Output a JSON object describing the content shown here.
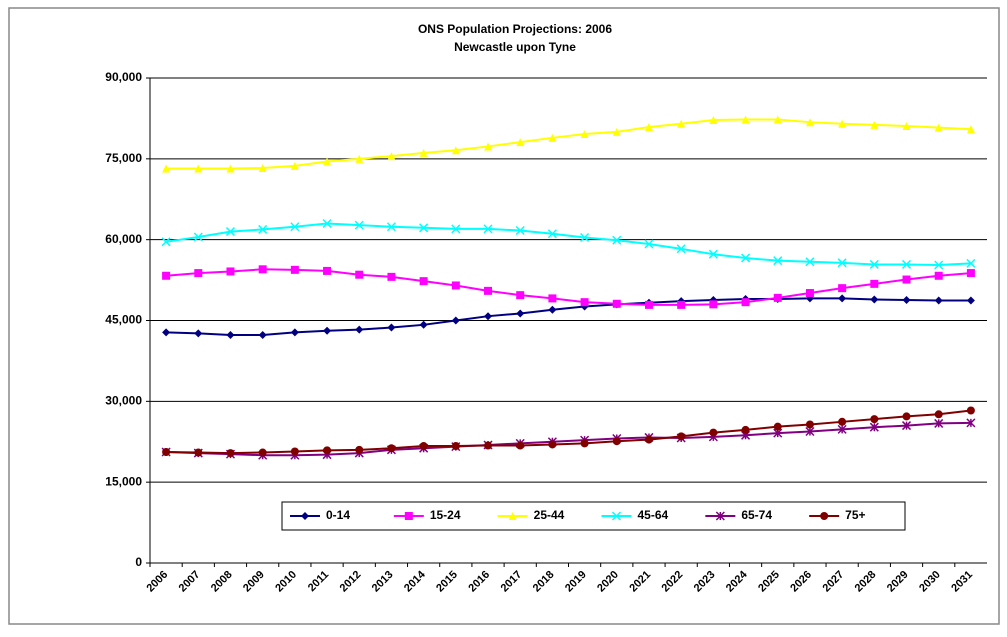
{
  "chart_data": {
    "type": "line",
    "title": "ONS Population Projections: 2006",
    "subtitle": "Newcastle upon Tyne",
    "categories": [
      "2006",
      "2007",
      "2008",
      "2009",
      "2010",
      "2011",
      "2012",
      "2013",
      "2014",
      "2015",
      "2016",
      "2017",
      "2018",
      "2019",
      "2020",
      "2021",
      "2022",
      "2023",
      "2024",
      "2025",
      "2026",
      "2027",
      "2028",
      "2029",
      "2030",
      "2031"
    ],
    "ylim": [
      0,
      90000
    ],
    "yticks": [
      0,
      {
        "value": 15000,
        "label": "15,000"
      },
      {
        "value": 30000,
        "label": "30,000"
      },
      {
        "value": 45000,
        "label": "45,000"
      },
      {
        "value": 60000,
        "label": "60,000"
      },
      {
        "value": 75000,
        "label": "75,000"
      },
      {
        "value": 90000,
        "label": "90,000"
      }
    ],
    "grid": true,
    "legend": "bottom",
    "series": [
      {
        "name": "0-14",
        "color": "#000080",
        "marker": "diamond",
        "values": [
          42800,
          42600,
          42300,
          42300,
          42800,
          43100,
          43300,
          43700,
          44200,
          45000,
          45800,
          46300,
          47000,
          47600,
          48000,
          48300,
          48600,
          48800,
          49000,
          49000,
          49100,
          49100,
          48900,
          48800,
          48700,
          48700
        ]
      },
      {
        "name": "15-24",
        "color": "#ff00ff",
        "marker": "square",
        "values": [
          53300,
          53800,
          54100,
          54500,
          54400,
          54200,
          53500,
          53100,
          52300,
          51500,
          50500,
          49700,
          49100,
          48400,
          48100,
          47900,
          47900,
          48000,
          48400,
          49200,
          50100,
          51000,
          51800,
          52600,
          53300,
          53800
        ]
      },
      {
        "name": "25-44",
        "color": "#ffff00",
        "marker": "triangle",
        "values": [
          73200,
          73200,
          73200,
          73300,
          73700,
          74500,
          75000,
          75500,
          76100,
          76600,
          77300,
          78100,
          78900,
          79600,
          80000,
          80900,
          81500,
          82200,
          82300,
          82300,
          81800,
          81500,
          81300,
          81100,
          80800,
          80500
        ]
      },
      {
        "name": "45-64",
        "color": "#00ffff",
        "marker": "x",
        "values": [
          59600,
          60500,
          61500,
          61900,
          62400,
          63000,
          62700,
          62400,
          62200,
          62000,
          62000,
          61700,
          61100,
          60400,
          59900,
          59200,
          58300,
          57300,
          56600,
          56100,
          55900,
          55700,
          55400,
          55400,
          55300,
          55600
        ]
      },
      {
        "name": "65-74",
        "color": "#800080",
        "marker": "star",
        "values": [
          20600,
          20400,
          20200,
          20000,
          20000,
          20100,
          20400,
          21000,
          21300,
          21600,
          21900,
          22200,
          22500,
          22800,
          23100,
          23300,
          23200,
          23400,
          23700,
          24100,
          24400,
          24800,
          25200,
          25500,
          25900,
          26000
        ]
      },
      {
        "name": "75+",
        "color": "#800000",
        "marker": "circle",
        "values": [
          20600,
          20500,
          20400,
          20500,
          20700,
          20900,
          21000,
          21300,
          21700,
          21700,
          21800,
          21800,
          22000,
          22200,
          22600,
          22900,
          23500,
          24200,
          24700,
          25300,
          25700,
          26200,
          26700,
          27200,
          27600,
          28300
        ]
      }
    ]
  }
}
